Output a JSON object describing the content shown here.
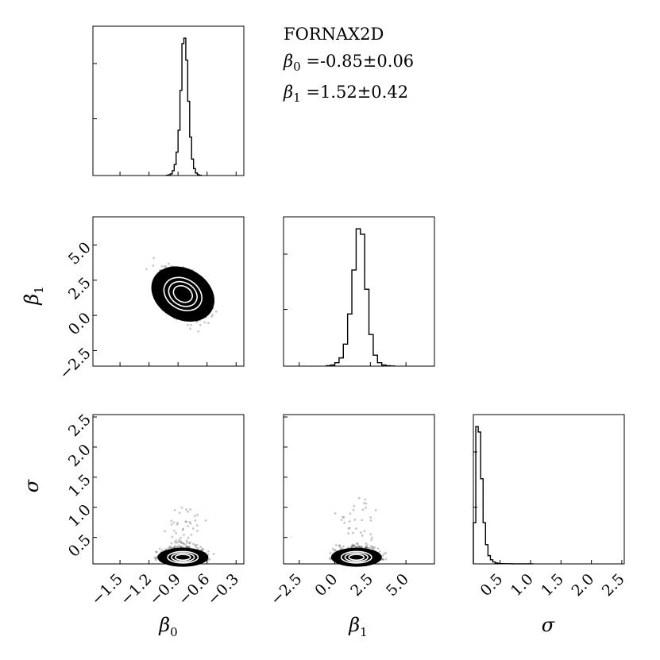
{
  "chart_data": {
    "type": "corner",
    "title": "FORNAX2D",
    "annotations": [
      {
        "param": "β",
        "sub": "0",
        "text": " =-0.85±0.06"
      },
      {
        "param": "β",
        "sub": "1",
        "text": " =1.52±0.42"
      }
    ],
    "parameters": [
      {
        "name": "β",
        "sub": "0",
        "range": [
          -1.78,
          -0.22
        ],
        "ticks": [
          -1.5,
          -1.2,
          -0.9,
          -0.6,
          -0.3
        ],
        "tick_labels": [
          "−1.5",
          "−1.2",
          "−0.9",
          "−0.6",
          "−0.3"
        ],
        "mean": -0.85,
        "std": 0.06
      },
      {
        "name": "β",
        "sub": "1",
        "range": [
          -3.6,
          7.0
        ],
        "ticks": [
          -2.5,
          0.0,
          2.5,
          5.0
        ],
        "tick_labels": [
          "−2.5",
          "0.0",
          "2.5",
          "5.0"
        ],
        "mean": 1.52,
        "std": 0.42
      },
      {
        "name": "σ",
        "sub": "",
        "range": [
          0.06,
          2.54
        ],
        "ticks": [
          0.5,
          1.0,
          1.5,
          2.0,
          2.5
        ],
        "tick_labels": [
          "0.5",
          "1.0",
          "1.5",
          "2.0",
          "2.5"
        ],
        "mean": 0.17,
        "std": 0.06
      }
    ],
    "histograms": [
      {
        "param": 0,
        "x": [
          -1.02,
          -1.0,
          -0.98,
          -0.96,
          -0.94,
          -0.92,
          -0.9,
          -0.88,
          -0.86,
          -0.84,
          -0.82,
          -0.8,
          -0.78,
          -0.76,
          -0.74,
          -0.72,
          -0.7,
          -0.68
        ],
        "counts": [
          2,
          5,
          12,
          35,
          80,
          170,
          330,
          620,
          960,
          1000,
          840,
          540,
          280,
          120,
          50,
          18,
          6,
          2
        ]
      },
      {
        "param": 1,
        "x": [
          -0.6,
          -0.3,
          0.0,
          0.3,
          0.6,
          0.9,
          1.2,
          1.5,
          1.8,
          2.1,
          2.4,
          2.7,
          3.0,
          3.3,
          3.6,
          3.9
        ],
        "counts": [
          3,
          8,
          25,
          60,
          160,
          380,
          700,
          1000,
          960,
          560,
          230,
          80,
          25,
          8,
          3,
          1
        ]
      },
      {
        "param": 2,
        "x": [
          0.06,
          0.1,
          0.14,
          0.18,
          0.22,
          0.26,
          0.3,
          0.34,
          0.38,
          0.42,
          0.46,
          0.5,
          0.55,
          0.6,
          0.7,
          0.8,
          1.0
        ],
        "counts": [
          300,
          1000,
          960,
          620,
          300,
          140,
          60,
          30,
          14,
          7,
          4,
          2,
          1,
          1,
          0.5,
          0.3,
          0.1
        ]
      }
    ],
    "scatter_panels": [
      {
        "x_param": 0,
        "y_param": 1,
        "cov": -0.012
      },
      {
        "x_param": 0,
        "y_param": 2,
        "cov": 0.0
      },
      {
        "x_param": 1,
        "y_param": 2,
        "cov": 0.0
      }
    ],
    "grid": false,
    "legend": "none"
  }
}
